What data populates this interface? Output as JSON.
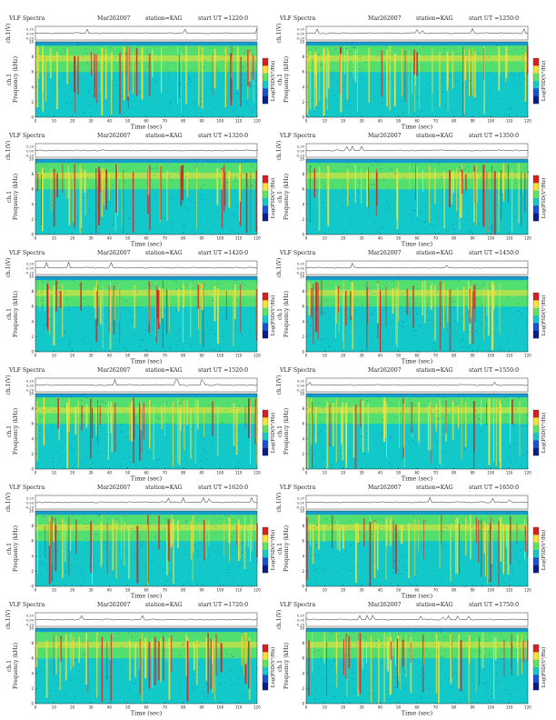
{
  "colors": {
    "background": "#ffffff",
    "spectrogram_base": "#12c8c8",
    "spectrogram_mid": "#5fe35f",
    "spectrogram_high": "#f5e23a",
    "spectrogram_peak": "#d81e1e",
    "noise_blue": "#1850d8"
  },
  "panel_header": {
    "title": "VLF Spectra",
    "date": "Mar262007",
    "station": "station=KAG"
  },
  "axis_labels": {
    "channel": "ch.1(V)",
    "freq_prefix": "ch.1",
    "freq": "Frequency (kHz)",
    "time": "Time (sec)",
    "colorbar": "Log(PSD(V²/Hz)"
  },
  "chart_data": [
    {
      "type": "heatmap",
      "ut": "start UT =1220:0",
      "xlim": [
        0,
        120
      ],
      "ylim_khz": [
        0,
        10
      ],
      "xticks": [
        0,
        10,
        20,
        30,
        40,
        50,
        60,
        70,
        80,
        90,
        100,
        110,
        120
      ],
      "yticks": [
        0,
        2,
        4,
        6,
        8,
        10
      ],
      "ch_ticks": [
        "0.20",
        "0.00",
        "-0.20"
      ]
    },
    {
      "type": "heatmap",
      "ut": "start UT =1250:0",
      "xlim": [
        0,
        120
      ],
      "ylim_khz": [
        0,
        10
      ],
      "xticks": [
        0,
        10,
        20,
        30,
        40,
        50,
        60,
        70,
        80,
        90,
        100,
        110,
        120
      ],
      "yticks": [
        0,
        2,
        4,
        6,
        8,
        10
      ],
      "ch_ticks": [
        "0.20",
        "0.00",
        "-0.20"
      ]
    },
    {
      "type": "heatmap",
      "ut": "start UT =1320:0",
      "xlim": [
        0,
        120
      ],
      "ylim_khz": [
        0,
        10
      ],
      "xticks": [
        0,
        10,
        20,
        30,
        40,
        50,
        60,
        70,
        80,
        90,
        100,
        110,
        120
      ],
      "yticks": [
        0,
        2,
        4,
        6,
        8,
        10
      ],
      "ch_ticks": [
        "0.20",
        "0.00",
        "-0.20"
      ]
    },
    {
      "type": "heatmap",
      "ut": "start UT =1350:0",
      "xlim": [
        0,
        120
      ],
      "ylim_khz": [
        0,
        10
      ],
      "xticks": [
        0,
        10,
        20,
        30,
        40,
        50,
        60,
        70,
        80,
        90,
        100,
        110,
        120
      ],
      "yticks": [
        0,
        2,
        4,
        6,
        8,
        10
      ],
      "ch_ticks": [
        "0.20",
        "0.00",
        "-0.20"
      ]
    },
    {
      "type": "heatmap",
      "ut": "start UT =1420:0",
      "xlim": [
        0,
        120
      ],
      "ylim_khz": [
        0,
        10
      ],
      "xticks": [
        0,
        10,
        20,
        30,
        40,
        50,
        60,
        70,
        80,
        90,
        100,
        110,
        120
      ],
      "yticks": [
        0,
        2,
        4,
        6,
        8,
        10
      ],
      "ch_ticks": [
        "0.20",
        "0.00",
        "-0.20"
      ]
    },
    {
      "type": "heatmap",
      "ut": "start UT =1450:0",
      "xlim": [
        0,
        120
      ],
      "ylim_khz": [
        0,
        10
      ],
      "xticks": [
        0,
        10,
        20,
        30,
        40,
        50,
        60,
        70,
        80,
        90,
        100,
        110,
        120
      ],
      "yticks": [
        0,
        2,
        4,
        6,
        8,
        10
      ],
      "ch_ticks": [
        "0.20",
        "0.00",
        "-0.20"
      ]
    },
    {
      "type": "heatmap",
      "ut": "start UT =1520:0",
      "xlim": [
        0,
        120
      ],
      "ylim_khz": [
        0,
        10
      ],
      "xticks": [
        0,
        10,
        20,
        30,
        40,
        50,
        60,
        70,
        80,
        90,
        100,
        110,
        120
      ],
      "yticks": [
        0,
        2,
        4,
        6,
        8,
        10
      ],
      "ch_ticks": [
        "0.20",
        "0.00",
        "-0.20"
      ]
    },
    {
      "type": "heatmap",
      "ut": "start UT =1550:0",
      "xlim": [
        0,
        120
      ],
      "ylim_khz": [
        0,
        10
      ],
      "xticks": [
        0,
        10,
        20,
        30,
        40,
        50,
        60,
        70,
        80,
        90,
        100,
        110,
        120
      ],
      "yticks": [
        0,
        2,
        4,
        6,
        8,
        10
      ],
      "ch_ticks": [
        "0.20",
        "0.00",
        "-0.20"
      ]
    },
    {
      "type": "heatmap",
      "ut": "start UT =1620:0",
      "xlim": [
        0,
        120
      ],
      "ylim_khz": [
        0,
        10
      ],
      "xticks": [
        0,
        10,
        20,
        30,
        40,
        50,
        60,
        70,
        80,
        90,
        100,
        110,
        120
      ],
      "yticks": [
        0,
        2,
        4,
        6,
        8,
        10
      ],
      "ch_ticks": [
        "0.20",
        "0.00",
        "-0.20"
      ]
    },
    {
      "type": "heatmap",
      "ut": "start UT =1650:0",
      "xlim": [
        0,
        120
      ],
      "ylim_khz": [
        0,
        10
      ],
      "xticks": [
        0,
        10,
        20,
        30,
        40,
        50,
        60,
        70,
        80,
        90,
        100,
        110,
        120
      ],
      "yticks": [
        0,
        2,
        4,
        6,
        8,
        10
      ],
      "ch_ticks": [
        "0.20",
        "0.00",
        "-0.20"
      ]
    },
    {
      "type": "heatmap",
      "ut": "start UT =1720:0",
      "xlim": [
        0,
        120
      ],
      "ylim_khz": [
        0,
        10
      ],
      "xticks": [
        0,
        10,
        20,
        30,
        40,
        50,
        60,
        70,
        80,
        90,
        100,
        110,
        120
      ],
      "yticks": [
        0,
        2,
        4,
        6,
        8,
        10
      ],
      "ch_ticks": [
        "0.20",
        "0.00",
        "-0.20"
      ]
    },
    {
      "type": "heatmap",
      "ut": "start UT =1750:0",
      "xlim": [
        0,
        120
      ],
      "ylim_khz": [
        0,
        10
      ],
      "xticks": [
        0,
        10,
        20,
        30,
        40,
        50,
        60,
        70,
        80,
        90,
        100,
        110,
        120
      ],
      "yticks": [
        0,
        2,
        4,
        6,
        8,
        10
      ],
      "ch_ticks": [
        "0.20",
        "0.00",
        "-0.20"
      ]
    }
  ]
}
